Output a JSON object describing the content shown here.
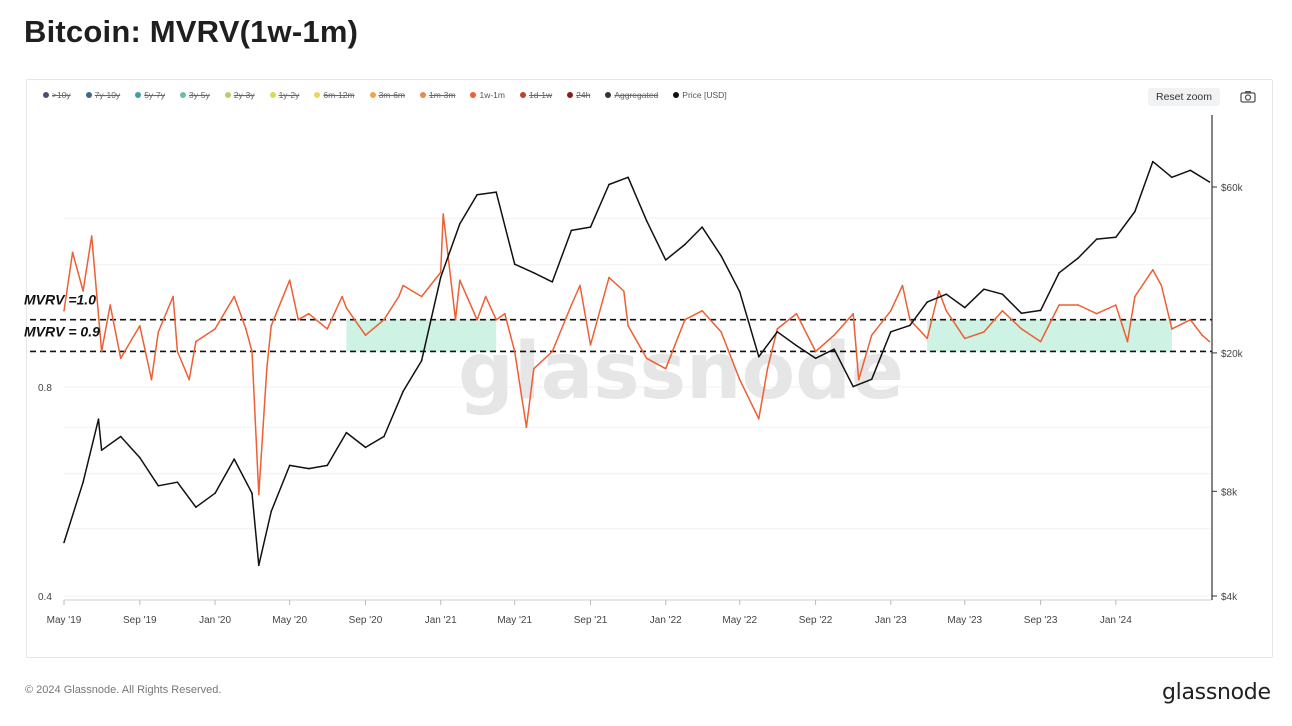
{
  "title": "Bitcoin: MVRV(1w-1m)",
  "legend": [
    {
      "label": ">10y",
      "color": "#4a4e7a",
      "active": false
    },
    {
      "label": "7y-10y",
      "color": "#3a6b8c",
      "active": false
    },
    {
      "label": "5y-7y",
      "color": "#3f9ea8",
      "active": false
    },
    {
      "label": "3y-5y",
      "color": "#6cbf9b",
      "active": false
    },
    {
      "label": "2y-3y",
      "color": "#b5cf6b",
      "active": false
    },
    {
      "label": "1y-2y",
      "color": "#d9dc52",
      "active": false
    },
    {
      "label": "6m-12m",
      "color": "#f3d15a",
      "active": false
    },
    {
      "label": "3m-6m",
      "color": "#f2a64a",
      "active": false
    },
    {
      "label": "1m-3m",
      "color": "#ec8a45",
      "active": false
    },
    {
      "label": "1w-1m",
      "color": "#ee5f33",
      "active": true
    },
    {
      "label": "1d-1w",
      "color": "#c4402d",
      "active": false
    },
    {
      "label": "24h",
      "color": "#8a1c1c",
      "active": false
    },
    {
      "label": "Aggregated",
      "color": "#333333",
      "active": false
    },
    {
      "label": "Price [USD]",
      "color": "#111111",
      "active": true
    }
  ],
  "reset_zoom_label": "Reset zoom",
  "camera_icon": "camera-icon",
  "watermark": "glassnode",
  "footer": {
    "copyright": "© 2024 Glassnode. All Rights Reserved.",
    "brand": "glassnode"
  },
  "chart_data": {
    "type": "line",
    "x_ticks": [
      "May '19",
      "Sep '19",
      "Jan '20",
      "May '20",
      "Sep '20",
      "Jan '21",
      "May '21",
      "Sep '21",
      "Jan '22",
      "May '22",
      "Sep '22",
      "Jan '23",
      "May '23",
      "Sep '23",
      "Jan '24"
    ],
    "left_axis": {
      "scale": "log",
      "ticks": [
        "0.4",
        "0.8"
      ]
    },
    "right_axis": {
      "scale": "log",
      "ticks": [
        "$4k",
        "$8k",
        "$20k",
        "$60k"
      ]
    },
    "annotations": [
      {
        "label": "MVRV =1.0",
        "value": 1.0,
        "style": "dashed"
      },
      {
        "label": "MVRV = 0.9",
        "value": 0.9,
        "style": "dashed"
      }
    ],
    "shaded_regions": [
      {
        "from": "Aug '20",
        "to": "Apr '21",
        "y_range": [
          0.9,
          1.0
        ],
        "color": "#c9f1e0"
      },
      {
        "from": "Mar '23",
        "to": "Apr '24",
        "y_range": [
          0.9,
          1.0
        ],
        "color": "#c9f1e0"
      }
    ],
    "series": [
      {
        "name": "1w-1m",
        "color": "#ee5f33",
        "axis": "left",
        "points": [
          [
            "2019-05",
            1.03
          ],
          [
            "2019-05-15",
            1.25
          ],
          [
            "2019-06",
            1.1
          ],
          [
            "2019-06-15",
            1.32
          ],
          [
            "2019-07",
            0.9
          ],
          [
            "2019-07-15",
            1.05
          ],
          [
            "2019-08",
            0.88
          ],
          [
            "2019-09",
            0.98
          ],
          [
            "2019-09-20",
            0.82
          ],
          [
            "2019-10",
            0.96
          ],
          [
            "2019-10-25",
            1.08
          ],
          [
            "2019-11",
            0.9
          ],
          [
            "2019-11-20",
            0.82
          ],
          [
            "2019-12",
            0.93
          ],
          [
            "2020-01",
            0.97
          ],
          [
            "2020-02",
            1.08
          ],
          [
            "2020-02-20",
            0.97
          ],
          [
            "2020-03",
            0.9
          ],
          [
            "2020-03-12",
            0.56
          ],
          [
            "2020-03-25",
            0.85
          ],
          [
            "2020-04",
            0.98
          ],
          [
            "2020-05",
            1.14
          ],
          [
            "2020-05-15",
            1.0
          ],
          [
            "2020-06",
            1.02
          ],
          [
            "2020-07",
            0.97
          ],
          [
            "2020-07-25",
            1.08
          ],
          [
            "2020-08",
            1.04
          ],
          [
            "2020-09",
            0.95
          ],
          [
            "2020-10",
            1.0
          ],
          [
            "2020-10-25",
            1.08
          ],
          [
            "2020-11",
            1.12
          ],
          [
            "2020-12",
            1.08
          ],
          [
            "2021-01",
            1.17
          ],
          [
            "2021-01-05",
            1.42
          ],
          [
            "2021-01-25",
            1.0
          ],
          [
            "2021-02",
            1.14
          ],
          [
            "2021-03",
            1.0
          ],
          [
            "2021-03-15",
            1.08
          ],
          [
            "2021-04",
            1.0
          ],
          [
            "2021-04-15",
            1.02
          ],
          [
            "2021-05",
            0.9
          ],
          [
            "2021-05-20",
            0.7
          ],
          [
            "2021-06",
            0.85
          ],
          [
            "2021-07",
            0.9
          ],
          [
            "2021-08",
            1.05
          ],
          [
            "2021-08-15",
            1.12
          ],
          [
            "2021-09",
            0.92
          ],
          [
            "2021-10",
            1.15
          ],
          [
            "2021-10-25",
            1.1
          ],
          [
            "2021-11",
            0.98
          ],
          [
            "2021-12",
            0.88
          ],
          [
            "2022-01",
            0.85
          ],
          [
            "2022-02",
            1.0
          ],
          [
            "2022-03",
            1.03
          ],
          [
            "2022-04",
            0.96
          ],
          [
            "2022-05",
            0.82
          ],
          [
            "2022-06",
            0.72
          ],
          [
            "2022-06-15",
            0.85
          ],
          [
            "2022-07",
            0.97
          ],
          [
            "2022-08",
            1.02
          ],
          [
            "2022-09",
            0.9
          ],
          [
            "2022-10",
            0.95
          ],
          [
            "2022-11",
            1.02
          ],
          [
            "2022-11-10",
            0.82
          ],
          [
            "2022-12",
            0.95
          ],
          [
            "2023-01",
            1.03
          ],
          [
            "2023-01-20",
            1.12
          ],
          [
            "2023-02",
            1.0
          ],
          [
            "2023-03",
            0.94
          ],
          [
            "2023-03-20",
            1.1
          ],
          [
            "2023-04",
            1.03
          ],
          [
            "2023-05",
            0.94
          ],
          [
            "2023-06",
            0.96
          ],
          [
            "2023-07",
            1.03
          ],
          [
            "2023-08",
            0.97
          ],
          [
            "2023-09",
            0.93
          ],
          [
            "2023-10",
            1.05
          ],
          [
            "2023-11",
            1.05
          ],
          [
            "2023-12",
            1.02
          ],
          [
            "2024-01",
            1.05
          ],
          [
            "2024-01-20",
            0.93
          ],
          [
            "2024-02",
            1.08
          ],
          [
            "2024-03",
            1.18
          ],
          [
            "2024-03-15",
            1.12
          ],
          [
            "2024-04",
            0.97
          ],
          [
            "2024-05",
            1.0
          ],
          [
            "2024-05-20",
            0.95
          ],
          [
            "2024-06",
            0.93
          ]
        ]
      },
      {
        "name": "Price [USD]",
        "color": "#111111",
        "axis": "right",
        "points": [
          [
            "2019-05",
            5700
          ],
          [
            "2019-06",
            8500
          ],
          [
            "2019-06-26",
            12900
          ],
          [
            "2019-07",
            10500
          ],
          [
            "2019-08",
            11500
          ],
          [
            "2019-09",
            10000
          ],
          [
            "2019-10",
            8300
          ],
          [
            "2019-11",
            8500
          ],
          [
            "2019-12",
            7200
          ],
          [
            "2020-01",
            7900
          ],
          [
            "2020-02",
            9900
          ],
          [
            "2020-03",
            7900
          ],
          [
            "2020-03-12",
            4900
          ],
          [
            "2020-04",
            7000
          ],
          [
            "2020-05",
            9500
          ],
          [
            "2020-06",
            9300
          ],
          [
            "2020-07",
            9500
          ],
          [
            "2020-08",
            11800
          ],
          [
            "2020-09",
            10700
          ],
          [
            "2020-10",
            11500
          ],
          [
            "2020-11",
            15500
          ],
          [
            "2020-12",
            19000
          ],
          [
            "2021-01",
            33000
          ],
          [
            "2021-02",
            47000
          ],
          [
            "2021-03",
            57000
          ],
          [
            "2021-04",
            58000
          ],
          [
            "2021-05",
            36000
          ],
          [
            "2021-06",
            34000
          ],
          [
            "2021-07",
            32000
          ],
          [
            "2021-08",
            45000
          ],
          [
            "2021-09",
            46000
          ],
          [
            "2021-10",
            61000
          ],
          [
            "2021-11",
            64000
          ],
          [
            "2021-12",
            48000
          ],
          [
            "2022-01",
            37000
          ],
          [
            "2022-02",
            41000
          ],
          [
            "2022-03",
            46000
          ],
          [
            "2022-04",
            38000
          ],
          [
            "2022-05",
            30000
          ],
          [
            "2022-06",
            19500
          ],
          [
            "2022-07",
            23000
          ],
          [
            "2022-08",
            21000
          ],
          [
            "2022-09",
            19300
          ],
          [
            "2022-10",
            20500
          ],
          [
            "2022-11",
            16000
          ],
          [
            "2022-12",
            16800
          ],
          [
            "2023-01",
            23000
          ],
          [
            "2023-02",
            24000
          ],
          [
            "2023-03",
            28000
          ],
          [
            "2023-04",
            29500
          ],
          [
            "2023-05",
            27000
          ],
          [
            "2023-06",
            30500
          ],
          [
            "2023-07",
            29500
          ],
          [
            "2023-08",
            26000
          ],
          [
            "2023-09",
            26500
          ],
          [
            "2023-10",
            34000
          ],
          [
            "2023-11",
            37500
          ],
          [
            "2023-12",
            42500
          ],
          [
            "2024-01",
            43000
          ],
          [
            "2024-02",
            51000
          ],
          [
            "2024-03",
            71000
          ],
          [
            "2024-04",
            64000
          ],
          [
            "2024-05",
            67000
          ],
          [
            "2024-06",
            62000
          ]
        ]
      }
    ]
  }
}
